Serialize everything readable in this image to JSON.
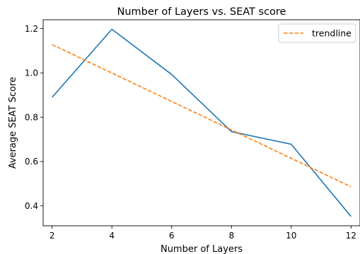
{
  "chart_data": {
    "type": "line",
    "title": "Number of Layers vs. SEAT score",
    "xlabel": "Number of Layers",
    "ylabel": "Average SEAT Score",
    "xlim": [
      1.7,
      12.3
    ],
    "ylim": [
      0.31,
      1.24
    ],
    "xticks": [
      2,
      4,
      6,
      8,
      10,
      12
    ],
    "yticks": [
      0.4,
      0.6,
      0.8,
      1.0,
      1.2
    ],
    "ytick_labels": [
      "0.4",
      "0.6",
      "0.8",
      "1.0",
      "1.2"
    ],
    "grid": false,
    "legend_position": "top-right",
    "series": [
      {
        "x": [
          2,
          4,
          6,
          8,
          10,
          12
        ],
        "values": [
          0.89,
          1.197,
          0.993,
          0.735,
          0.678,
          0.352
        ],
        "color": "#1f77b4",
        "style": "solid"
      },
      {
        "name": "trendline",
        "x": [
          2,
          12
        ],
        "values": [
          1.128,
          0.486
        ],
        "color": "#ff7f0e",
        "style": "dashed"
      }
    ]
  }
}
